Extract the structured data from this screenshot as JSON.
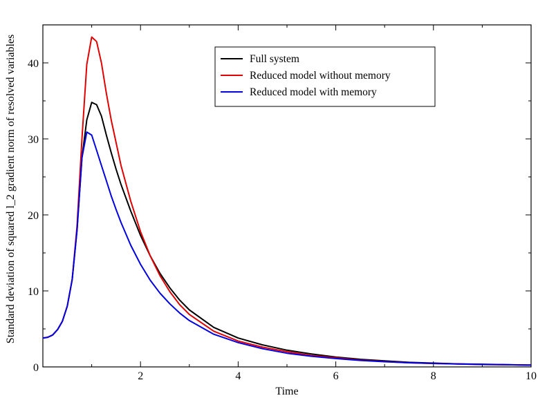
{
  "chart_data": {
    "type": "line",
    "title": "",
    "xlabel": "Time",
    "ylabel": "Standard deviation of squared l_2 gradient norm of resolved variables",
    "xlim": [
      0,
      10
    ],
    "ylim": [
      0,
      45
    ],
    "x_ticks": [
      2,
      4,
      6,
      8,
      10
    ],
    "x_tick_labels": [
      "2",
      "4",
      "6",
      "8",
      "10"
    ],
    "y_ticks": [
      0,
      10,
      20,
      30,
      40
    ],
    "y_tick_labels": [
      "0",
      "10",
      "20",
      "30",
      "40"
    ],
    "grid": false,
    "legend_position": "top-right",
    "series": [
      {
        "name": "Full system",
        "color": "#000000",
        "x": [
          0,
          0.1,
          0.2,
          0.3,
          0.4,
          0.5,
          0.6,
          0.7,
          0.8,
          0.9,
          1.0,
          1.1,
          1.2,
          1.3,
          1.4,
          1.5,
          1.6,
          1.8,
          2.0,
          2.2,
          2.4,
          2.6,
          2.8,
          3.0,
          3.5,
          4.0,
          4.5,
          5.0,
          5.5,
          6.0,
          6.5,
          7.0,
          7.5,
          8.0,
          8.5,
          9.0,
          9.5,
          10.0
        ],
        "y": [
          3.8,
          3.9,
          4.2,
          4.9,
          6.0,
          8.0,
          11.5,
          18.0,
          27.5,
          32.5,
          34.8,
          34.5,
          33.0,
          30.5,
          28.2,
          26.0,
          24.0,
          20.5,
          17.3,
          14.6,
          12.3,
          10.4,
          8.8,
          7.5,
          5.2,
          3.8,
          2.9,
          2.2,
          1.7,
          1.3,
          1.0,
          0.8,
          0.6,
          0.5,
          0.4,
          0.35,
          0.3,
          0.25
        ]
      },
      {
        "name": "Reduced model without memory",
        "color": "#e00000",
        "x": [
          0,
          0.1,
          0.2,
          0.3,
          0.4,
          0.5,
          0.6,
          0.7,
          0.8,
          0.9,
          1.0,
          1.1,
          1.2,
          1.3,
          1.4,
          1.5,
          1.6,
          1.8,
          2.0,
          2.2,
          2.4,
          2.6,
          2.8,
          3.0,
          3.5,
          4.0,
          4.5,
          5.0,
          5.5,
          6.0,
          6.5,
          7.0,
          7.5,
          8.0,
          8.5,
          9.0,
          9.5,
          10.0
        ],
        "y": [
          3.8,
          3.9,
          4.2,
          4.9,
          6.0,
          8.0,
          11.5,
          18.5,
          30.0,
          39.8,
          43.4,
          42.8,
          40.0,
          36.0,
          32.5,
          29.5,
          26.5,
          21.8,
          17.8,
          14.6,
          12.0,
          9.9,
          8.2,
          6.9,
          4.7,
          3.4,
          2.6,
          2.0,
          1.5,
          1.2,
          0.9,
          0.7,
          0.55,
          0.45,
          0.38,
          0.32,
          0.28,
          0.24
        ]
      },
      {
        "name": "Reduced model with memory",
        "color": "#0000e0",
        "x": [
          0,
          0.1,
          0.2,
          0.3,
          0.4,
          0.5,
          0.6,
          0.7,
          0.8,
          0.9,
          1.0,
          1.1,
          1.2,
          1.3,
          1.4,
          1.5,
          1.6,
          1.8,
          2.0,
          2.2,
          2.4,
          2.6,
          2.8,
          3.0,
          3.5,
          4.0,
          4.5,
          5.0,
          5.5,
          6.0,
          6.5,
          7.0,
          7.5,
          8.0,
          8.5,
          9.0,
          9.5,
          10.0
        ],
        "y": [
          3.8,
          3.9,
          4.2,
          4.9,
          6.0,
          8.0,
          11.5,
          18.0,
          27.5,
          30.9,
          30.5,
          28.5,
          26.5,
          24.5,
          22.5,
          20.7,
          19.0,
          16.0,
          13.5,
          11.4,
          9.7,
          8.3,
          7.1,
          6.1,
          4.3,
          3.2,
          2.4,
          1.8,
          1.4,
          1.1,
          0.85,
          0.68,
          0.55,
          0.45,
          0.38,
          0.32,
          0.28,
          0.24
        ]
      }
    ]
  }
}
